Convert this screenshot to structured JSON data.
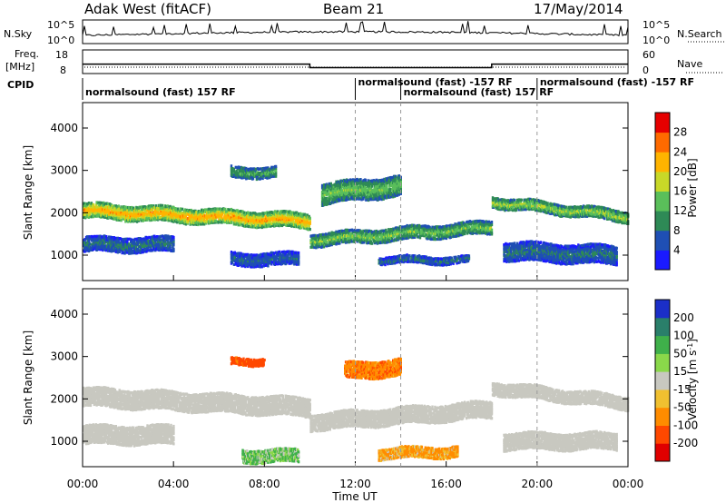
{
  "header": {
    "station": "Adak West (fitACF)",
    "beam": "Beam 21",
    "date": "17/May/2014"
  },
  "status_panels": {
    "nsky_label": "N.Sky",
    "nsky_ticks": [
      "10^5",
      "10^0"
    ],
    "nsearch_label": "N.Search",
    "nsearch_ticks": [
      "10^5",
      "10^0"
    ],
    "freq_label": "Freq.",
    "freq_unit": "[MHz]",
    "freq_ticks": [
      "18",
      "8"
    ],
    "nave_label": "Nave",
    "nave_ticks": [
      "60",
      "0"
    ],
    "cpid_label": "CPID",
    "cpid_segments": [
      {
        "label": "normalsound (fast) 157 RF",
        "start_hour": 0
      },
      {
        "label": "normalsound (fast) -157 RF",
        "start_hour": 12
      },
      {
        "label": "normalsound (fast) 157 RF",
        "start_hour": 14
      },
      {
        "label": "normalsound (fast) -157 RF",
        "start_hour": 20
      }
    ],
    "freq_steps": [
      {
        "from_hour": 0,
        "to_hour": 10,
        "mhz": 12
      },
      {
        "from_hour": 10,
        "to_hour": 18,
        "mhz": 10.5
      },
      {
        "from_hour": 18,
        "to_hour": 24,
        "mhz": 12
      }
    ]
  },
  "power_panel": {
    "ylabel": "Slant Range [km]",
    "yticks": [
      "1000",
      "2000",
      "3000",
      "4000"
    ],
    "colorbar_label": "Power [dB]",
    "colorbar_ticks": [
      "4",
      "8",
      "12",
      "16",
      "20",
      "24",
      "28"
    ],
    "colors": [
      "#1a1aff",
      "#1f4fb4",
      "#2e8a56",
      "#5abf5a",
      "#c8d828",
      "#ffb400",
      "#ff6a00",
      "#e60000"
    ]
  },
  "velocity_panel": {
    "ylabel": "Slant Range [km]",
    "yticks": [
      "1000",
      "2000",
      "3000",
      "4000"
    ],
    "colorbar_label": "Velocity [m s",
    "colorbar_label_sup": "-1",
    "colorbar_label_end": "]",
    "colorbar_ticks": [
      "200",
      "100",
      "50",
      "15",
      "-15",
      "-50",
      "-100",
      "-200"
    ],
    "colors": [
      "#1b2fc8",
      "#2a7f6a",
      "#3fb04a",
      "#8ad84a",
      "#c8c8c0",
      "#f0c030",
      "#ff8c00",
      "#ff4800",
      "#e00000"
    ]
  },
  "xaxis": {
    "label": "Time UT",
    "ticks": [
      "00:00",
      "04:00",
      "08:00",
      "12:00",
      "16:00",
      "20:00",
      "00:00"
    ]
  },
  "chart_data": [
    {
      "type": "heatmap",
      "title": "Power",
      "xlabel": "Time UT",
      "ylabel": "Slant Range [km]",
      "xlim": [
        0,
        24
      ],
      "ylim": [
        400,
        4600
      ],
      "colorbar": {
        "label": "Power [dB]",
        "range": [
          0,
          32
        ]
      },
      "bands": [
        {
          "from_hour": 0.0,
          "to_hour": 10.0,
          "range_km_start": 2100,
          "range_km_end": 1850,
          "width_km": 350,
          "power_db": 22
        },
        {
          "from_hour": 10.0,
          "to_hour": 18.0,
          "range_km_start": 1400,
          "range_km_end": 1700,
          "width_km": 300,
          "power_db": 14
        },
        {
          "from_hour": 18.0,
          "to_hour": 24.0,
          "range_km_start": 2300,
          "range_km_end": 1950,
          "width_km": 250,
          "power_db": 16
        },
        {
          "from_hour": 0.0,
          "to_hour": 4.0,
          "range_km_start": 1300,
          "range_km_end": 1300,
          "width_km": 350,
          "power_db": 8
        },
        {
          "from_hour": 6.5,
          "to_hour": 9.5,
          "range_km_start": 950,
          "range_km_end": 950,
          "width_km": 300,
          "power_db": 7
        },
        {
          "from_hour": 6.5,
          "to_hour": 8.5,
          "range_km_start": 3000,
          "range_km_end": 3000,
          "width_km": 250,
          "power_db": 12
        },
        {
          "from_hour": 13.0,
          "to_hour": 17.0,
          "range_km_start": 950,
          "range_km_end": 950,
          "width_km": 200,
          "power_db": 8
        },
        {
          "from_hour": 10.5,
          "to_hour": 14.0,
          "range_km_start": 2500,
          "range_km_end": 2700,
          "width_km": 500,
          "power_db": 14
        },
        {
          "from_hour": 18.5,
          "to_hour": 23.5,
          "range_km_start": 1150,
          "range_km_end": 1050,
          "width_km": 450,
          "power_db": 8
        }
      ]
    },
    {
      "type": "heatmap",
      "title": "Velocity",
      "xlabel": "Time UT",
      "ylabel": "Slant Range [km]",
      "xlim": [
        0,
        24
      ],
      "ylim": [
        400,
        4600
      ],
      "colorbar": {
        "label": "Velocity [m s-1]",
        "range": [
          -200,
          200
        ]
      },
      "bands": [
        {
          "from_hour": 0.0,
          "to_hour": 10.0,
          "range_km_start": 2100,
          "range_km_end": 1850,
          "width_km": 450,
          "velocity": 0
        },
        {
          "from_hour": 10.0,
          "to_hour": 18.0,
          "range_km_start": 1500,
          "range_km_end": 1800,
          "width_km": 400,
          "velocity": 0
        },
        {
          "from_hour": 18.0,
          "to_hour": 24.0,
          "range_km_start": 2300,
          "range_km_end": 1950,
          "width_km": 300,
          "velocity": 0
        },
        {
          "from_hour": 7.0,
          "to_hour": 9.5,
          "range_km_start": 700,
          "range_km_end": 700,
          "width_km": 300,
          "velocity": 30
        },
        {
          "from_hour": 13.0,
          "to_hour": 16.5,
          "range_km_start": 750,
          "range_km_end": 800,
          "width_km": 250,
          "velocity": -40
        },
        {
          "from_hour": 6.5,
          "to_hour": 8.0,
          "range_km_start": 2950,
          "range_km_end": 2950,
          "width_km": 200,
          "velocity": -100
        },
        {
          "from_hour": 11.5,
          "to_hour": 14.0,
          "range_km_start": 2700,
          "range_km_end": 2800,
          "width_km": 400,
          "velocity": -60
        },
        {
          "from_hour": 0.0,
          "to_hour": 4.0,
          "range_km_start": 1200,
          "range_km_end": 1200,
          "width_km": 450,
          "velocity": 0
        },
        {
          "from_hour": 18.5,
          "to_hour": 23.5,
          "range_km_start": 1050,
          "range_km_end": 1050,
          "width_km": 400,
          "velocity": 0
        }
      ]
    }
  ]
}
